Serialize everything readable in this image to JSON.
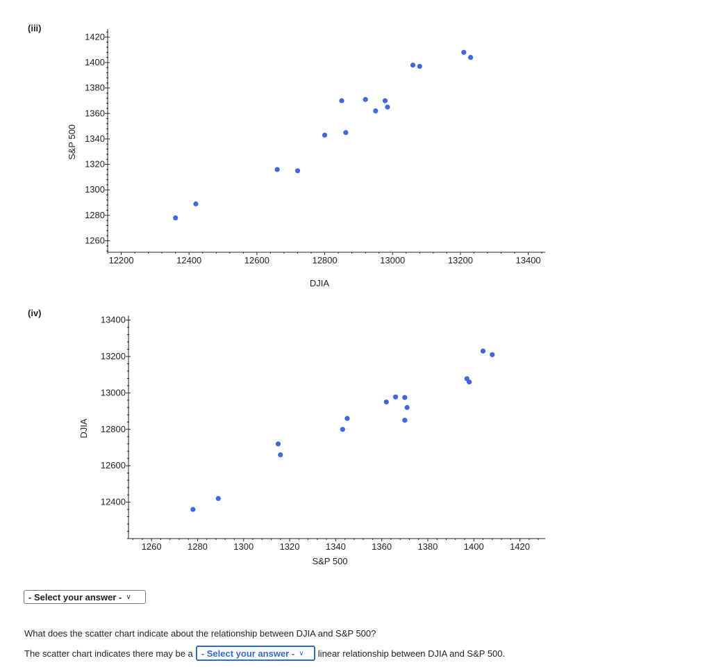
{
  "panels": [
    {
      "label": "(iii)"
    },
    {
      "label": "(iv)"
    }
  ],
  "chart_data": [
    {
      "type": "scatter",
      "xlabel": "DJIA",
      "ylabel": "S&P 500",
      "xlim": [
        12160,
        13450
      ],
      "ylim": [
        1251,
        1424
      ],
      "xticks": [
        12200,
        12400,
        12600,
        12800,
        13000,
        13200,
        13400
      ],
      "yticks": [
        1260,
        1280,
        1300,
        1320,
        1340,
        1360,
        1380,
        1400,
        1420
      ],
      "color": "#3f66e6",
      "points": [
        [
          12360,
          1278
        ],
        [
          12420,
          1289
        ],
        [
          12660,
          1316
        ],
        [
          12720,
          1315
        ],
        [
          12800,
          1343
        ],
        [
          12850,
          1370
        ],
        [
          12862,
          1345
        ],
        [
          12920,
          1371
        ],
        [
          12950,
          1362
        ],
        [
          12978,
          1370
        ],
        [
          12985,
          1365
        ],
        [
          13060,
          1398
        ],
        [
          13080,
          1397
        ],
        [
          13210,
          1408
        ],
        [
          13230,
          1404
        ]
      ]
    },
    {
      "type": "scatter",
      "xlabel": "S&P 500",
      "ylabel": "DJIA",
      "xlim": [
        1250,
        1431
      ],
      "ylim": [
        12200,
        13410
      ],
      "xticks": [
        1260,
        1280,
        1300,
        1320,
        1340,
        1360,
        1380,
        1400,
        1420
      ],
      "yticks": [
        12400,
        12600,
        12800,
        13000,
        13200,
        13400
      ],
      "color": "#3f66e6",
      "points": [
        [
          1278,
          12360
        ],
        [
          1289,
          12420
        ],
        [
          1315,
          12720
        ],
        [
          1316,
          12660
        ],
        [
          1343,
          12800
        ],
        [
          1345,
          12860
        ],
        [
          1362,
          12950
        ],
        [
          1366,
          12978
        ],
        [
          1370,
          12975
        ],
        [
          1370,
          12850
        ],
        [
          1371,
          12920
        ],
        [
          1397,
          13078
        ],
        [
          1398,
          13060
        ],
        [
          1404,
          13230
        ],
        [
          1408,
          13210
        ]
      ]
    }
  ],
  "form": {
    "select_placeholder": "- Select your answer -",
    "question": "What does the scatter chart indicate about the relationship between DJIA and S&P 500?",
    "sentence_prefix": "The scatter chart indicates there may be a",
    "sentence_suffix": "linear relationship between DJIA and S&P 500.",
    "chevron": "chevron-down-icon"
  }
}
